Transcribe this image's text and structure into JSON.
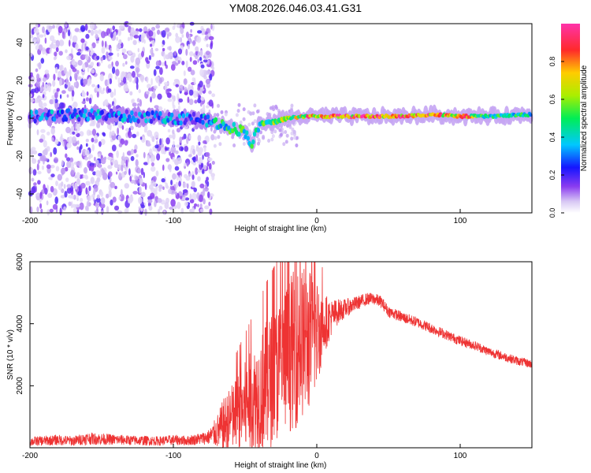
{
  "title": "YM08.2026.046.03.41.G31",
  "chart_data": [
    {
      "type": "heatmap",
      "title": "YM08.2026.046.03.41.G31",
      "xlabel": "Height of straight line (km)",
      "ylabel": "Frequency (Hz)",
      "xlim": [
        -200,
        150
      ],
      "ylim": [
        -50,
        50
      ],
      "x_ticks": [
        -200,
        -100,
        0,
        100
      ],
      "y_ticks": [
        -40,
        -20,
        0,
        20,
        40
      ],
      "x_tick_labels": [
        "-200",
        "-100",
        "0",
        "100"
      ],
      "y_tick_labels": [
        "-40",
        "-20",
        "0",
        "20",
        "40"
      ],
      "noise_region_km": [
        -200,
        -72
      ],
      "ridge": [
        {
          "x": -190,
          "f": 1,
          "amp": 0.35
        },
        {
          "x": -160,
          "f": 2,
          "amp": 0.4
        },
        {
          "x": -130,
          "f": 1,
          "amp": 0.4
        },
        {
          "x": -100,
          "f": 0,
          "amp": 0.35
        },
        {
          "x": -85,
          "f": 0,
          "amp": 0.4
        },
        {
          "x": -72,
          "f": -2,
          "amp": 0.45
        },
        {
          "x": -60,
          "f": -5,
          "amp": 0.55
        },
        {
          "x": -50,
          "f": -7,
          "amp": 0.55
        },
        {
          "x": -45,
          "f": -14,
          "amp": 0.5
        },
        {
          "x": -40,
          "f": -3,
          "amp": 0.6
        },
        {
          "x": -30,
          "f": -2,
          "amp": 0.65
        },
        {
          "x": -20,
          "f": 0,
          "amp": 0.75
        },
        {
          "x": -10,
          "f": 1,
          "amp": 0.8
        },
        {
          "x": 0,
          "f": 1,
          "amp": 0.95
        },
        {
          "x": 20,
          "f": 1,
          "amp": 0.95
        },
        {
          "x": 40,
          "f": 1,
          "amp": 0.95
        },
        {
          "x": 60,
          "f": 1,
          "amp": 0.95
        },
        {
          "x": 80,
          "f": 2,
          "amp": 0.9
        },
        {
          "x": 100,
          "f": 1,
          "amp": 0.95
        },
        {
          "x": 120,
          "f": 1,
          "amp": 0.55
        },
        {
          "x": 150,
          "f": 2,
          "amp": 0.5
        }
      ]
    },
    {
      "type": "colorbar",
      "label": "Normalized spectral amplitude",
      "range": [
        0.0,
        1.0
      ],
      "ticks": [
        0.0,
        0.2,
        0.4,
        0.6,
        0.8
      ],
      "tick_labels": [
        "0.0",
        "0.2",
        "0.4",
        "0.6",
        "0.8"
      ]
    },
    {
      "type": "line",
      "xlabel": "Height of straight line (km)",
      "ylabel": "SNR (10 * v/v)",
      "xlim": [
        -200,
        150
      ],
      "ylim": [
        0,
        6000
      ],
      "x_ticks": [
        -200,
        -100,
        0,
        100
      ],
      "y_ticks": [
        2000,
        4000,
        6000
      ],
      "x_tick_labels": [
        "-200",
        "-100",
        "0",
        "100"
      ],
      "y_tick_labels": [
        "2000",
        "4000",
        "6000"
      ],
      "color": "#ee3333",
      "series": [
        {
          "name": "SNR",
          "x": [
            -200,
            -190,
            -180,
            -170,
            -160,
            -150,
            -140,
            -130,
            -120,
            -110,
            -100,
            -90,
            -80,
            -75,
            -70,
            -65,
            -60,
            -55,
            -50,
            -45,
            -40,
            -35,
            -30,
            -25,
            -20,
            -15,
            -10,
            -5,
            0,
            5,
            10,
            15,
            20,
            25,
            30,
            35,
            40,
            45,
            50,
            60,
            70,
            80,
            90,
            100,
            110,
            120,
            130,
            140,
            150
          ],
          "values": [
            200,
            230,
            250,
            220,
            300,
            280,
            260,
            240,
            230,
            220,
            250,
            230,
            300,
            350,
            500,
            700,
            900,
            1100,
            1300,
            1500,
            1700,
            2000,
            2300,
            2600,
            3000,
            3200,
            3400,
            3500,
            3700,
            4000,
            4200,
            4400,
            4500,
            4600,
            4700,
            4800,
            4800,
            4700,
            4400,
            4200,
            4050,
            3850,
            3650,
            3450,
            3300,
            3100,
            2950,
            2800,
            2700
          ],
          "spread": [
            150,
            160,
            170,
            160,
            200,
            190,
            170,
            160,
            160,
            150,
            170,
            160,
            200,
            250,
            500,
            900,
            1100,
            1300,
            1500,
            1700,
            1900,
            2100,
            2200,
            2300,
            2500,
            2600,
            2500,
            2300,
            1800,
            1000,
            600,
            400,
            300,
            250,
            220,
            200,
            200,
            200,
            180,
            180,
            170,
            170,
            160,
            160,
            150,
            150,
            150,
            140,
            140
          ]
        }
      ]
    }
  ]
}
